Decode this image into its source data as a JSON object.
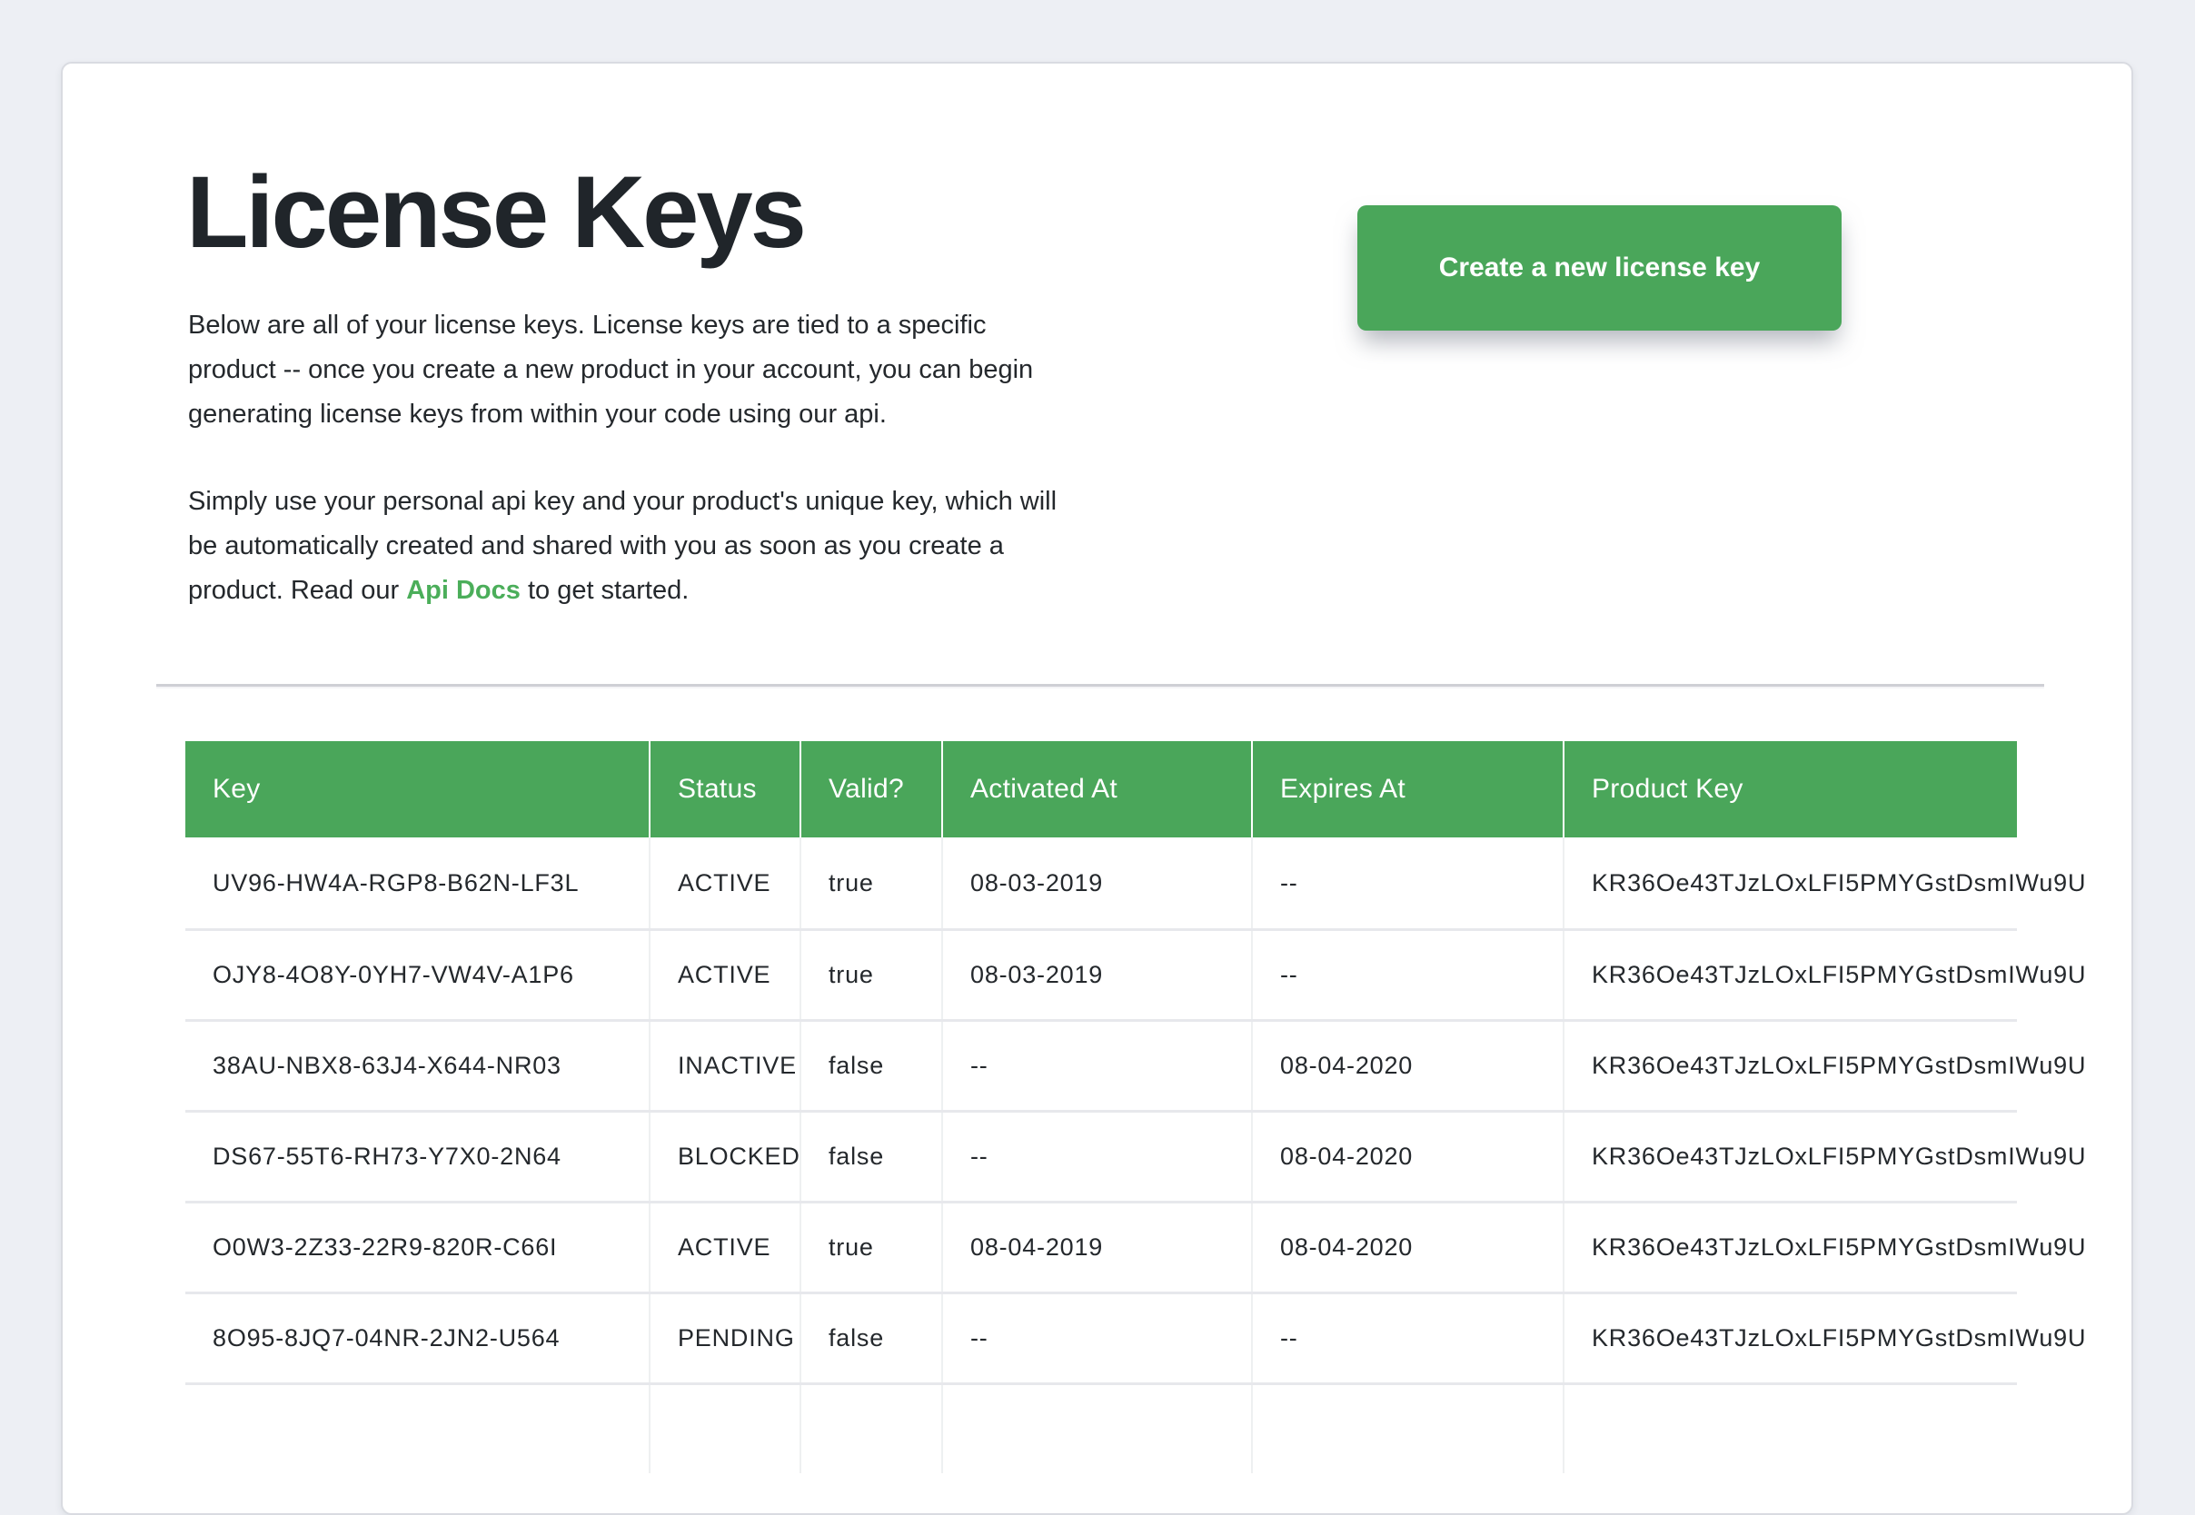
{
  "page": {
    "background": "#edeff4",
    "card_background": "#ffffff"
  },
  "colors": {
    "green_accent": "#4aa65a",
    "link_green": "#4bae5a",
    "table_header_bg": "#4aa65a",
    "table_header_text": "#ffffff",
    "body_text": "#24282c"
  },
  "header": {
    "title": "License Keys",
    "intro_p1": "Below are all of your license keys. License keys are tied to a specific product -- once you create a new product in your account, you can begin generating license keys from within your code using our api.",
    "intro_p2_before": "Simply use your personal api key and your product's unique key, which will be automatically created and shared with you as soon as you create a product. Read our ",
    "api_docs_link_label": "Api Docs",
    "intro_p2_after": " to get started.",
    "create_button_label": "Create a new license key"
  },
  "table": {
    "columns": [
      "Key",
      "Status",
      "Valid?",
      "Activated At",
      "Expires At",
      "Product Key"
    ],
    "rows": [
      [
        "UV96-HW4A-RGP8-B62N-LF3L",
        "ACTIVE",
        "true",
        "08-03-2019",
        "--",
        "KR36Oe43TJzLOxLFI5PMYGstDsmIWu9U"
      ],
      [
        "OJY8-4O8Y-0YH7-VW4V-A1P6",
        "ACTIVE",
        "true",
        "08-03-2019",
        "--",
        "KR36Oe43TJzLOxLFI5PMYGstDsmIWu9U"
      ],
      [
        "38AU-NBX8-63J4-X644-NR03",
        "INACTIVE",
        "false",
        "--",
        "08-04-2020",
        "KR36Oe43TJzLOxLFI5PMYGstDsmIWu9U"
      ],
      [
        "DS67-55T6-RH73-Y7X0-2N64",
        "BLOCKED",
        "false",
        "--",
        "08-04-2020",
        "KR36Oe43TJzLOxLFI5PMYGstDsmIWu9U"
      ],
      [
        "O0W3-2Z33-22R9-820R-C66I",
        "ACTIVE",
        "true",
        "08-04-2019",
        "08-04-2020",
        "KR36Oe43TJzLOxLFI5PMYGstDsmIWu9U"
      ],
      [
        "8O95-8JQ7-04NR-2JN2-U564",
        "PENDING",
        "false",
        "--",
        "--",
        "KR36Oe43TJzLOxLFI5PMYGstDsmIWu9U"
      ]
    ]
  }
}
